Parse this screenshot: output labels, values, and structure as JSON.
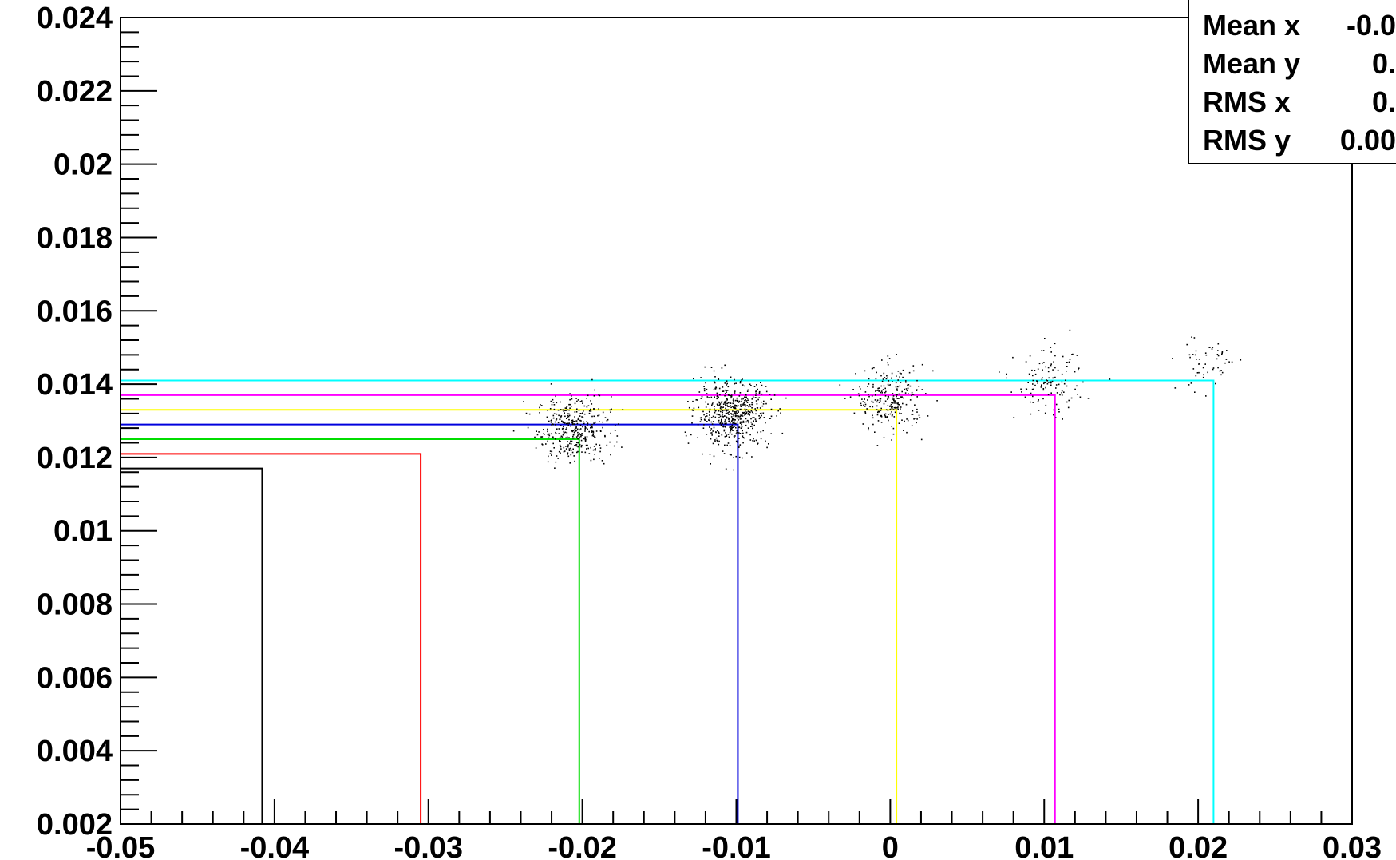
{
  "chart_data": {
    "type": "scatter",
    "title": "",
    "xlabel": "",
    "ylabel": "",
    "xlim": [
      -0.05,
      0.03
    ],
    "ylim": [
      0.002,
      0.024
    ],
    "x_ticks": [
      "-0.05",
      "-0.04",
      "-0.03",
      "-0.02",
      "-0.01",
      "0",
      "0.01",
      "0.02",
      "0.03"
    ],
    "y_ticks": [
      "0.002",
      "0.004",
      "0.006",
      "0.008",
      "0.01",
      "0.012",
      "0.014",
      "0.016",
      "0.018",
      "0.02",
      "0.022",
      "0.024"
    ],
    "grid": false,
    "marker_color": "#000000",
    "clusters": [
      {
        "x": -0.0206,
        "y": 0.0128,
        "sx": 0.0012,
        "sy": 0.00045,
        "n": 380
      },
      {
        "x": -0.0103,
        "y": 0.0132,
        "sx": 0.0012,
        "sy": 0.00045,
        "n": 560
      },
      {
        "x": 0.0,
        "y": 0.0136,
        "sx": 0.0011,
        "sy": 0.00045,
        "n": 260
      },
      {
        "x": 0.0103,
        "y": 0.014,
        "sx": 0.0011,
        "sy": 0.00045,
        "n": 130
      },
      {
        "x": 0.0206,
        "y": 0.0146,
        "sx": 0.001,
        "sy": 0.0004,
        "n": 55
      }
    ],
    "boundary_lines": [
      {
        "color": "#000000",
        "x": -0.0408,
        "y": 0.0117
      },
      {
        "color": "#ff0000",
        "x": -0.0305,
        "y": 0.0121
      },
      {
        "color": "#00dd00",
        "x": -0.0202,
        "y": 0.0125
      },
      {
        "color": "#0000dd",
        "x": -0.0099,
        "y": 0.0129
      },
      {
        "color": "#ffff00",
        "x": 0.0004,
        "y": 0.0133
      },
      {
        "color": "#ff00ff",
        "x": 0.0107,
        "y": 0.0137
      },
      {
        "color": "#00ffff",
        "x": 0.021,
        "y": 0.0141
      }
    ],
    "stats_box": {
      "rows": [
        {
          "label": "Mean x",
          "value": "-0.0"
        },
        {
          "label": "Mean y",
          "value": "0."
        },
        {
          "label": "RMS x",
          "value": "0."
        },
        {
          "label": "RMS y",
          "value": "0.00"
        }
      ]
    }
  }
}
